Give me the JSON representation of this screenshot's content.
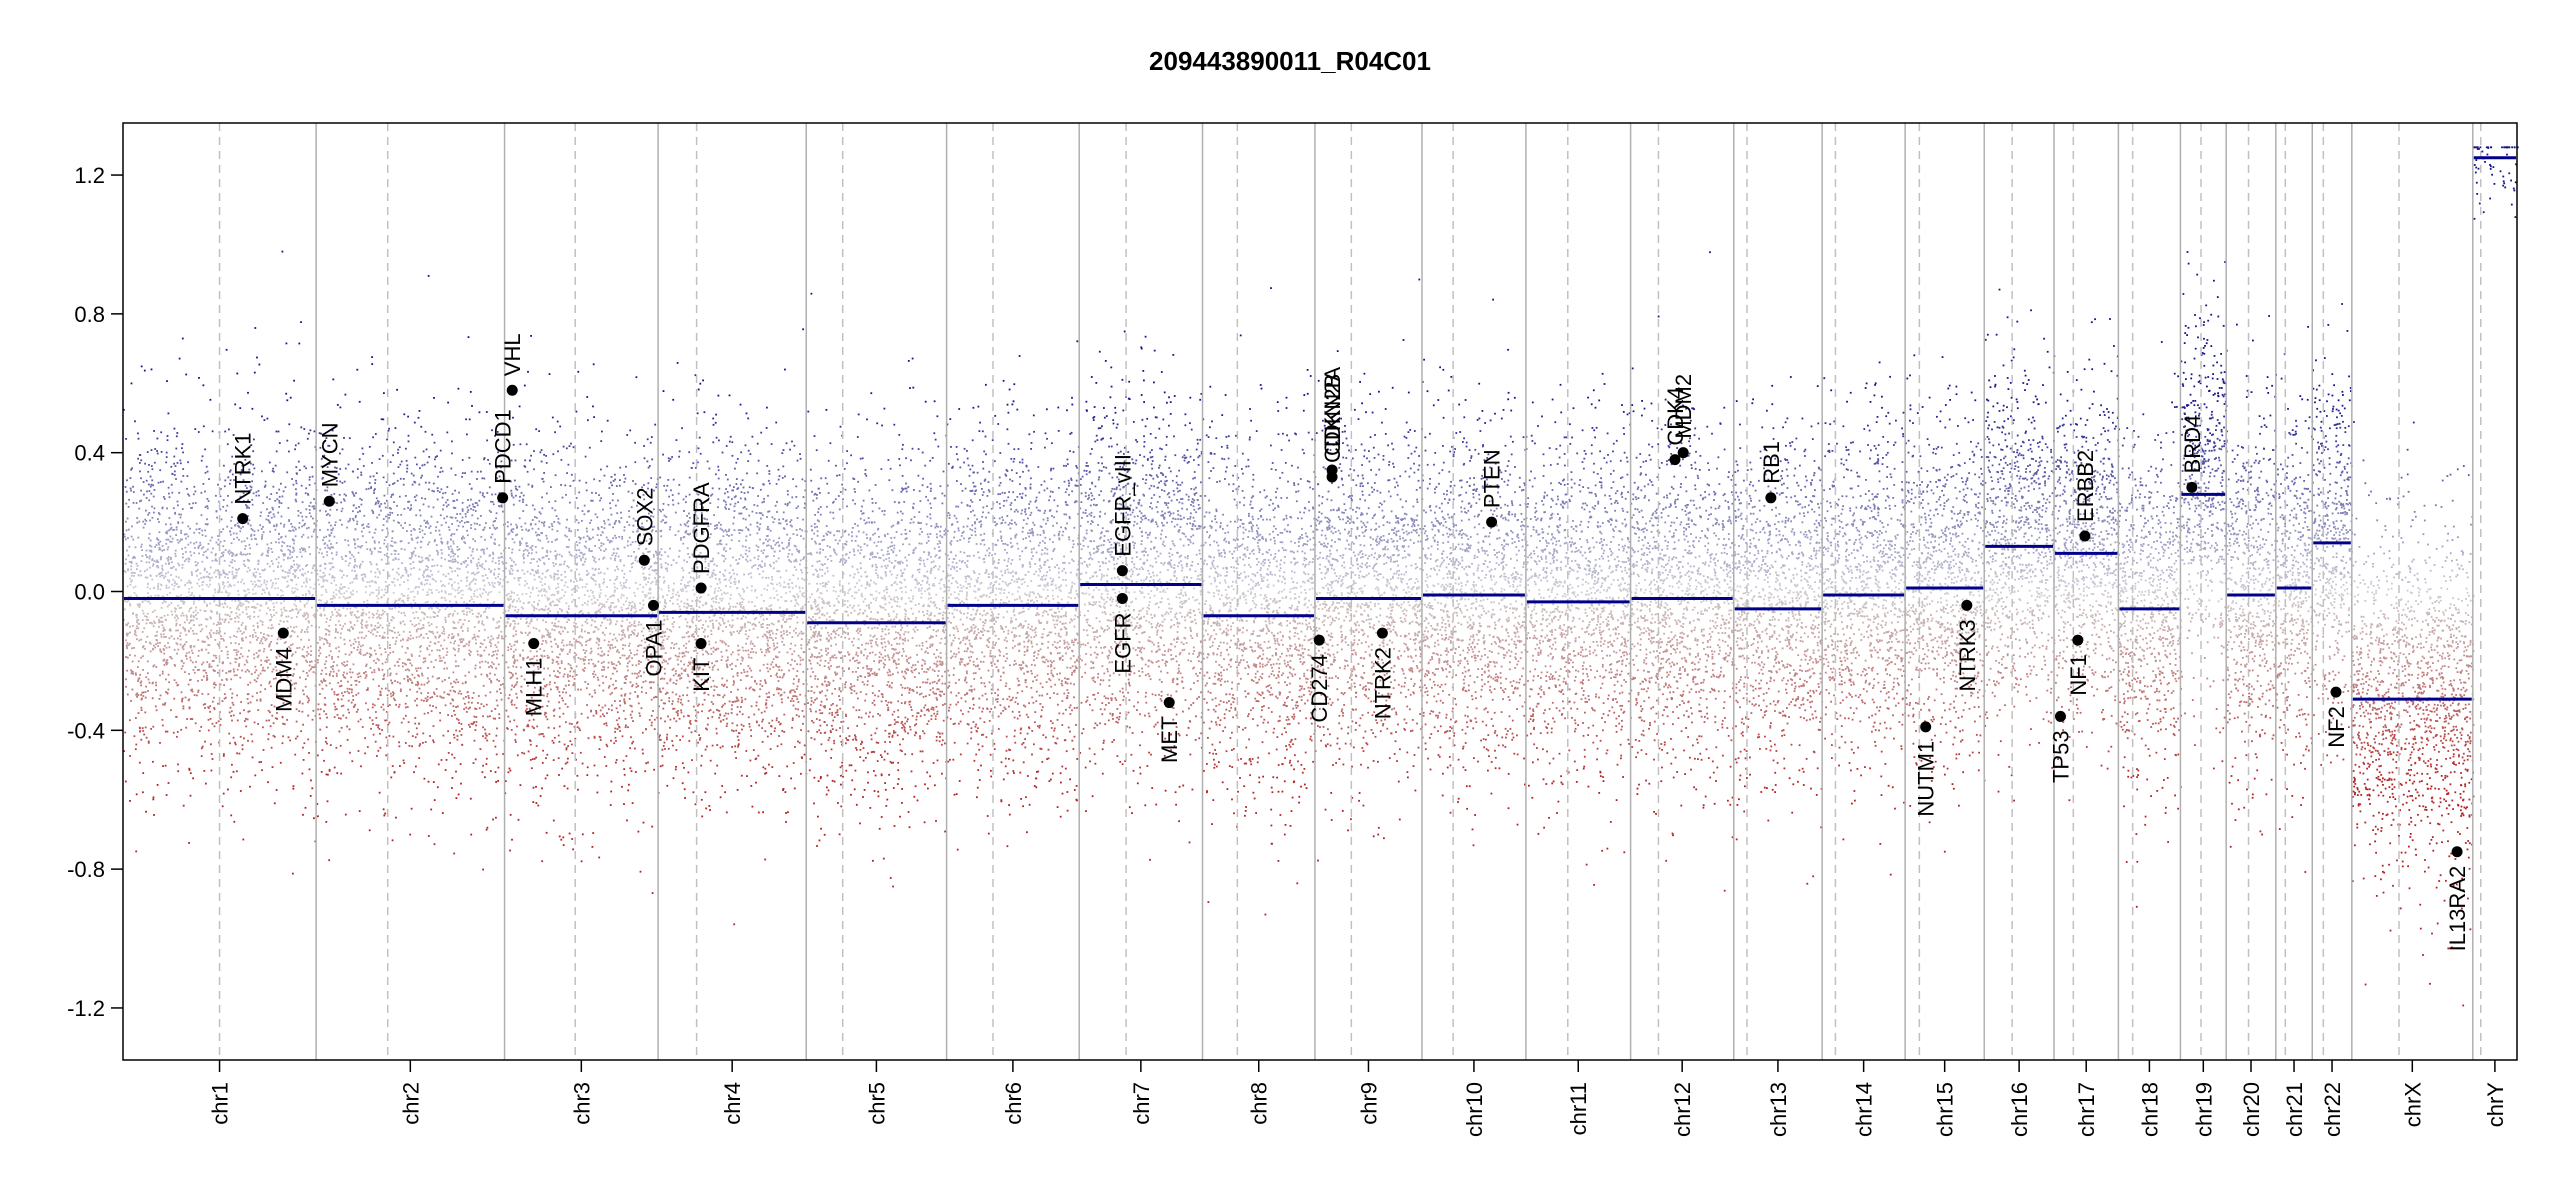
{
  "chart_data": {
    "type": "scatter",
    "title": "209443890011_R04C01",
    "xlabel": "",
    "ylabel": "",
    "ylim": [
      -1.35,
      1.35
    ],
    "yticks": [
      -1.2,
      -0.8,
      -0.4,
      0.0,
      0.4,
      0.8,
      1.2
    ],
    "ytick_labels": [
      "-1.2",
      "-0.8",
      "-0.4",
      "0.0",
      "0.4",
      "0.8",
      "1.2"
    ],
    "colors": {
      "gain": "#00008b",
      "loss": "#b22222",
      "neutral": "#c8c8c8",
      "segment": "#00008b",
      "axis": "#000000",
      "chrom_boundary": "#b0b0b0",
      "centromere": "#c0c0c0"
    },
    "chromosomes": [
      {
        "name": "chr1",
        "size": 249,
        "centromere": 0.5,
        "segment": -0.02
      },
      {
        "name": "chr2",
        "size": 243,
        "centromere": 0.38,
        "segment": -0.04
      },
      {
        "name": "chr3",
        "size": 198,
        "centromere": 0.46,
        "segment": -0.07
      },
      {
        "name": "chr4",
        "size": 191,
        "centromere": 0.26,
        "segment": -0.06
      },
      {
        "name": "chr5",
        "size": 181,
        "centromere": 0.26,
        "segment": -0.09
      },
      {
        "name": "chr6",
        "size": 171,
        "centromere": 0.35,
        "segment": -0.04
      },
      {
        "name": "chr7",
        "size": 159,
        "centromere": 0.38,
        "segment": 0.02
      },
      {
        "name": "chr8",
        "size": 145,
        "centromere": 0.31,
        "segment": -0.07
      },
      {
        "name": "chr9",
        "size": 138,
        "centromere": 0.34,
        "segment": -0.02
      },
      {
        "name": "chr10",
        "size": 134,
        "centromere": 0.3,
        "segment": -0.01
      },
      {
        "name": "chr11",
        "size": 135,
        "centromere": 0.4,
        "segment": -0.03
      },
      {
        "name": "chr12",
        "size": 133,
        "centromere": 0.27,
        "segment": -0.02
      },
      {
        "name": "chr13",
        "size": 114,
        "centromere": 0.15,
        "segment": -0.05
      },
      {
        "name": "chr14",
        "size": 107,
        "centromere": 0.16,
        "segment": -0.01
      },
      {
        "name": "chr15",
        "size": 102,
        "centromere": 0.18,
        "segment": 0.01
      },
      {
        "name": "chr16",
        "size": 90,
        "centromere": 0.4,
        "segment": 0.13
      },
      {
        "name": "chr17",
        "size": 83,
        "centromere": 0.3,
        "segment": 0.11
      },
      {
        "name": "chr18",
        "size": 80,
        "centromere": 0.23,
        "segment": -0.05
      },
      {
        "name": "chr19",
        "size": 59,
        "centromere": 0.45,
        "segment": 0.28
      },
      {
        "name": "chr20",
        "size": 64,
        "centromere": 0.45,
        "segment": -0.01
      },
      {
        "name": "chr21",
        "size": 47,
        "centromere": 0.26,
        "segment": 0.01
      },
      {
        "name": "chr22",
        "size": 51,
        "centromere": 0.28,
        "segment": 0.14
      },
      {
        "name": "chrX",
        "size": 156,
        "centromere": 0.39,
        "segment": -0.31
      },
      {
        "name": "chrY",
        "size": 57,
        "centromere": 0.18,
        "segment": 1.25
      }
    ],
    "genes": [
      {
        "name": "NTRK1",
        "chrom": "chr1",
        "pos": 0.62,
        "value": 0.21
      },
      {
        "name": "MDM4",
        "chrom": "chr1",
        "pos": 0.83,
        "value": -0.12
      },
      {
        "name": "MYCN",
        "chrom": "chr2",
        "pos": 0.07,
        "value": 0.26
      },
      {
        "name": "PDCD1",
        "chrom": "chr2",
        "pos": 0.99,
        "value": 0.27
      },
      {
        "name": "VHL",
        "chrom": "chr3",
        "pos": 0.05,
        "value": 0.58
      },
      {
        "name": "MLH1",
        "chrom": "chr3",
        "pos": 0.19,
        "value": -0.15
      },
      {
        "name": "SOX2",
        "chrom": "chr3",
        "pos": 0.91,
        "value": 0.09
      },
      {
        "name": "OPA1",
        "chrom": "chr3",
        "pos": 0.97,
        "value": -0.04
      },
      {
        "name": "PDGFRA",
        "chrom": "chr4",
        "pos": 0.29,
        "value": 0.01
      },
      {
        "name": "KIT",
        "chrom": "chr4",
        "pos": 0.29,
        "value": -0.15
      },
      {
        "name": "EGFR_vIII",
        "chrom": "chr7",
        "pos": 0.35,
        "value": 0.06
      },
      {
        "name": "EGFR",
        "chrom": "chr7",
        "pos": 0.35,
        "value": -0.02
      },
      {
        "name": "MET",
        "chrom": "chr7",
        "pos": 0.73,
        "value": -0.32
      },
      {
        "name": "CD274",
        "chrom": "chr9",
        "pos": 0.04,
        "value": -0.14
      },
      {
        "name": "CDKN2A",
        "chrom": "chr9",
        "pos": 0.16,
        "value": 0.35
      },
      {
        "name": "CDKN2B",
        "chrom": "chr9",
        "pos": 0.16,
        "value": 0.33
      },
      {
        "name": "NTRK2",
        "chrom": "chr9",
        "pos": 0.63,
        "value": -0.12
      },
      {
        "name": "PTEN",
        "chrom": "chr10",
        "pos": 0.67,
        "value": 0.2
      },
      {
        "name": "CDK4",
        "chrom": "chr12",
        "pos": 0.43,
        "value": 0.38
      },
      {
        "name": "MDM2",
        "chrom": "chr12",
        "pos": 0.51,
        "value": 0.4
      },
      {
        "name": "RB1",
        "chrom": "chr13",
        "pos": 0.42,
        "value": 0.27
      },
      {
        "name": "NUTM1",
        "chrom": "chr15",
        "pos": 0.26,
        "value": -0.39
      },
      {
        "name": "NTRK3",
        "chrom": "chr15",
        "pos": 0.78,
        "value": -0.04
      },
      {
        "name": "TP53",
        "chrom": "chr17",
        "pos": 0.1,
        "value": -0.36
      },
      {
        "name": "NF1",
        "chrom": "chr17",
        "pos": 0.37,
        "value": -0.14
      },
      {
        "name": "ERBB2",
        "chrom": "chr17",
        "pos": 0.48,
        "value": 0.16
      },
      {
        "name": "BRD4",
        "chrom": "chr19",
        "pos": 0.25,
        "value": 0.3
      },
      {
        "name": "NF2",
        "chrom": "chr22",
        "pos": 0.6,
        "value": -0.29
      },
      {
        "name": "IL13RA2",
        "chrom": "chrX",
        "pos": 0.87,
        "value": -0.75
      }
    ]
  }
}
